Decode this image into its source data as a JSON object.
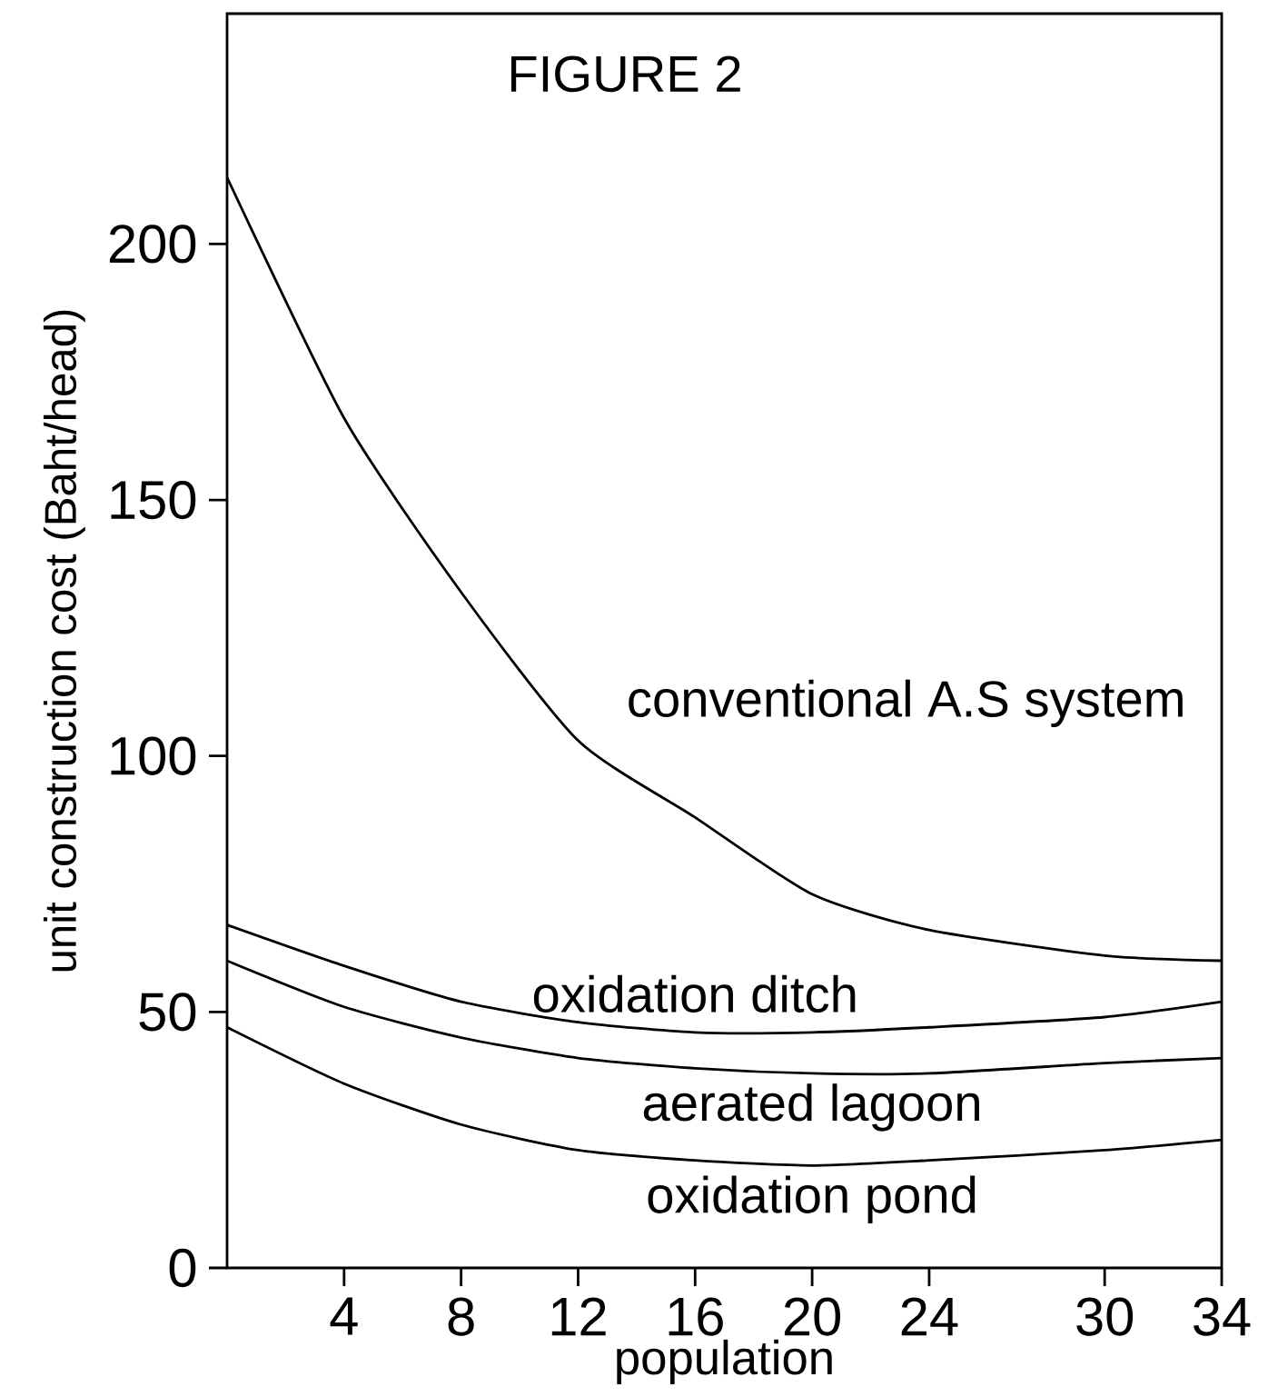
{
  "chart_data": {
    "type": "line",
    "title": "FIGURE 2",
    "xlabel": "population",
    "ylabel": "unit construction cost (Baht/head)",
    "x": [
      0,
      4,
      8,
      12,
      16,
      20,
      24,
      30,
      34
    ],
    "series": [
      {
        "name": "conventional A.S system",
        "color": "#000000",
        "values": [
          213,
          166,
          132,
          103,
          88,
          73,
          66,
          61,
          60
        ]
      },
      {
        "name": "oxidation ditch",
        "color": "#000000",
        "values": [
          67,
          59,
          52,
          48,
          46,
          46,
          47,
          49,
          52
        ]
      },
      {
        "name": "aerated lagoon",
        "color": "#000000",
        "values": [
          60,
          51,
          45,
          41,
          39,
          38,
          38,
          40,
          41
        ]
      },
      {
        "name": "oxidation pond",
        "color": "#000000",
        "values": [
          47,
          36,
          28,
          23,
          21,
          20,
          21,
          23,
          25
        ]
      }
    ],
    "xlim": [
      0,
      34
    ],
    "ylim": [
      0,
      245
    ],
    "xticks": [
      4,
      8,
      12,
      16,
      20,
      24,
      30,
      34
    ],
    "yticks": [
      0,
      50,
      100,
      150,
      200
    ],
    "grid": false,
    "marker": "none",
    "line_style": "solid"
  }
}
